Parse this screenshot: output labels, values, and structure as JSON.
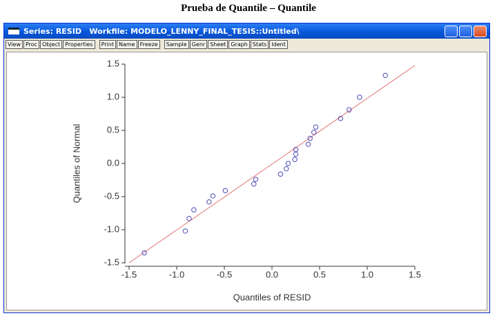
{
  "caption": "Prueba de Quantile – Quantile",
  "window": {
    "title": "Series: RESID   Workfile: MODELO_LENNY_FINAL_TESIS::Untitled\\",
    "toolbar": [
      [
        "View",
        "Proc",
        "Object",
        "Properties"
      ],
      [
        "Print",
        "Name",
        "Freeze"
      ],
      [
        "Sample",
        "Genr",
        "Sheet",
        "Graph",
        "Stats",
        "Ident"
      ]
    ]
  },
  "chart_data": {
    "type": "scatter",
    "xlabel": "Quantiles of RESID",
    "ylabel": "Quantiles of Normal",
    "x": [
      -1.34,
      -0.91,
      -0.87,
      -0.82,
      -0.66,
      -0.62,
      -0.49,
      -0.19,
      -0.17,
      0.09,
      0.15,
      0.17,
      0.24,
      0.25,
      0.25,
      0.38,
      0.4,
      0.44,
      0.46,
      0.72,
      0.81,
      0.92,
      1.19
    ],
    "values": [
      -1.35,
      -1.02,
      -0.83,
      -0.7,
      -0.58,
      -0.49,
      -0.41,
      -0.31,
      -0.24,
      -0.16,
      -0.08,
      0.0,
      0.06,
      0.14,
      0.21,
      0.29,
      0.38,
      0.47,
      0.55,
      0.68,
      0.81,
      1.0,
      1.33
    ],
    "color": "#4a4ab8",
    "reference_line": {
      "x": [
        -1.5,
        1.5
      ],
      "y": [
        -1.5,
        1.48
      ],
      "color": "#e07070"
    },
    "xlim": [
      -1.5,
      1.5
    ],
    "ylim": [
      -1.5,
      1.5
    ],
    "xticks": [
      -1.5,
      {
        "value": -1.0,
        "label": "-1.0"
      },
      -0.5,
      {
        "value": 0.0,
        "label": "0.0"
      },
      0.5,
      {
        "value": 1.0,
        "label": "1.0"
      },
      1.5
    ],
    "yticks": [
      -1.5,
      {
        "value": -1.0,
        "label": "-1.0"
      },
      -0.5,
      {
        "value": 0.0,
        "label": "0.0"
      },
      0.5,
      {
        "value": 1.0,
        "label": "1.0"
      },
      1.5
    ]
  }
}
